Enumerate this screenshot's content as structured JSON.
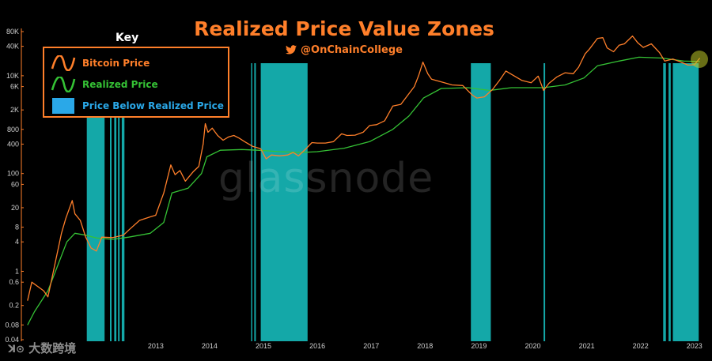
{
  "header": {
    "title": "Realized Price Value Zones",
    "handle": "@OnChainCollege",
    "handle_icon": "twitter-bird-icon"
  },
  "key": {
    "title": "Key",
    "items": [
      {
        "label": "Bitcoin Price",
        "color": "#ff7f2a",
        "icon": "orange-wave-icon"
      },
      {
        "label": "Realized Price",
        "color": "#35c235",
        "icon": "green-wave-icon"
      },
      {
        "label": "Price Below Realized Price",
        "color": "#2aa8e8",
        "icon": "blue-square-icon"
      }
    ]
  },
  "watermark": "glassnode",
  "footer_watermark": "大数跨境",
  "chart_data": {
    "type": "line",
    "title": "Realized Price Value Zones",
    "y_scale": "log",
    "ylim": [
      0.04,
      80000
    ],
    "y_ticks": [
      {
        "v": 80000,
        "label": "80K"
      },
      {
        "v": 40000,
        "label": "40K"
      },
      {
        "v": 10000,
        "label": "10K"
      },
      {
        "v": 6000,
        "label": "6K"
      },
      {
        "v": 2000,
        "label": "2K"
      },
      {
        "v": 800,
        "label": "800"
      },
      {
        "v": 400,
        "label": "400"
      },
      {
        "v": 100,
        "label": "100"
      },
      {
        "v": 60,
        "label": "60"
      },
      {
        "v": 20,
        "label": "20"
      },
      {
        "v": 8,
        "label": "8"
      },
      {
        "v": 4,
        "label": "4"
      },
      {
        "v": 1,
        "label": "1"
      },
      {
        "v": 0.6,
        "label": "0.6"
      },
      {
        "v": 0.2,
        "label": "0.2"
      },
      {
        "v": 0.08,
        "label": "0.08"
      },
      {
        "v": 0.04,
        "label": "0.04"
      }
    ],
    "xlim": [
      2010.55,
      2023.15
    ],
    "x_ticks": [
      2013,
      2014,
      2015,
      2016,
      2017,
      2018,
      2019,
      2020,
      2021,
      2022,
      2023
    ],
    "series": [
      {
        "name": "Bitcoin Price",
        "color": "#ff7f2a",
        "points": [
          [
            2010.62,
            0.25
          ],
          [
            2010.7,
            0.6
          ],
          [
            2010.8,
            0.5
          ],
          [
            2010.92,
            0.4
          ],
          [
            2011.0,
            0.3
          ],
          [
            2011.1,
            1.0
          ],
          [
            2011.25,
            6
          ],
          [
            2011.33,
            12
          ],
          [
            2011.45,
            28
          ],
          [
            2011.5,
            15
          ],
          [
            2011.6,
            11
          ],
          [
            2011.7,
            5
          ],
          [
            2011.8,
            3
          ],
          [
            2011.9,
            2.6
          ],
          [
            2012.0,
            5
          ],
          [
            2012.2,
            4.9
          ],
          [
            2012.4,
            5.5
          ],
          [
            2012.5,
            7
          ],
          [
            2012.7,
            11
          ],
          [
            2012.9,
            13
          ],
          [
            2013.0,
            14
          ],
          [
            2013.15,
            40
          ],
          [
            2013.28,
            150
          ],
          [
            2013.36,
            95
          ],
          [
            2013.45,
            115
          ],
          [
            2013.55,
            70
          ],
          [
            2013.7,
            110
          ],
          [
            2013.8,
            140
          ],
          [
            2013.88,
            400
          ],
          [
            2013.92,
            1050
          ],
          [
            2013.97,
            700
          ],
          [
            2014.05,
            850
          ],
          [
            2014.15,
            600
          ],
          [
            2014.25,
            480
          ],
          [
            2014.35,
            560
          ],
          [
            2014.45,
            600
          ],
          [
            2014.55,
            530
          ],
          [
            2014.65,
            450
          ],
          [
            2014.8,
            360
          ],
          [
            2014.95,
            320
          ],
          [
            2015.05,
            200
          ],
          [
            2015.15,
            240
          ],
          [
            2015.3,
            230
          ],
          [
            2015.45,
            240
          ],
          [
            2015.55,
            270
          ],
          [
            2015.65,
            230
          ],
          [
            2015.8,
            330
          ],
          [
            2015.9,
            430
          ],
          [
            2016.0,
            420
          ],
          [
            2016.15,
            420
          ],
          [
            2016.3,
            450
          ],
          [
            2016.45,
            650
          ],
          [
            2016.55,
            600
          ],
          [
            2016.7,
            610
          ],
          [
            2016.85,
            700
          ],
          [
            2016.97,
            960
          ],
          [
            2017.1,
            1000
          ],
          [
            2017.25,
            1200
          ],
          [
            2017.4,
            2400
          ],
          [
            2017.55,
            2600
          ],
          [
            2017.7,
            4300
          ],
          [
            2017.8,
            6000
          ],
          [
            2017.88,
            10000
          ],
          [
            2017.96,
            19000
          ],
          [
            2018.05,
            11000
          ],
          [
            2018.12,
            8500
          ],
          [
            2018.3,
            7500
          ],
          [
            2018.5,
            6500
          ],
          [
            2018.7,
            6300
          ],
          [
            2018.88,
            4000
          ],
          [
            2018.96,
            3500
          ],
          [
            2019.1,
            3700
          ],
          [
            2019.25,
            5200
          ],
          [
            2019.38,
            8000
          ],
          [
            2019.5,
            12500
          ],
          [
            2019.65,
            10000
          ],
          [
            2019.8,
            8000
          ],
          [
            2019.97,
            7200
          ],
          [
            2020.1,
            9800
          ],
          [
            2020.2,
            5000
          ],
          [
            2020.3,
            7000
          ],
          [
            2020.45,
            9500
          ],
          [
            2020.6,
            11500
          ],
          [
            2020.75,
            11000
          ],
          [
            2020.85,
            15000
          ],
          [
            2020.97,
            28000
          ],
          [
            2021.05,
            35000
          ],
          [
            2021.2,
            58000
          ],
          [
            2021.3,
            60000
          ],
          [
            2021.38,
            37000
          ],
          [
            2021.5,
            31000
          ],
          [
            2021.6,
            42000
          ],
          [
            2021.7,
            45000
          ],
          [
            2021.85,
            65000
          ],
          [
            2021.95,
            47000
          ],
          [
            2022.05,
            38000
          ],
          [
            2022.2,
            45000
          ],
          [
            2022.35,
            30000
          ],
          [
            2022.45,
            20000
          ],
          [
            2022.6,
            22000
          ],
          [
            2022.75,
            19000
          ],
          [
            2022.88,
            16500
          ],
          [
            2023.0,
            16800
          ],
          [
            2023.1,
            23000
          ]
        ]
      },
      {
        "name": "Realized Price",
        "color": "#35c235",
        "points": [
          [
            2010.62,
            0.08
          ],
          [
            2010.75,
            0.15
          ],
          [
            2011.0,
            0.4
          ],
          [
            2011.2,
            1.5
          ],
          [
            2011.35,
            4
          ],
          [
            2011.5,
            6
          ],
          [
            2011.7,
            5.5
          ],
          [
            2011.9,
            4.8
          ],
          [
            2012.2,
            4.5
          ],
          [
            2012.5,
            5
          ],
          [
            2012.9,
            6
          ],
          [
            2013.15,
            10
          ],
          [
            2013.3,
            40
          ],
          [
            2013.6,
            50
          ],
          [
            2013.85,
            100
          ],
          [
            2013.95,
            220
          ],
          [
            2014.2,
            300
          ],
          [
            2014.6,
            310
          ],
          [
            2014.9,
            300
          ],
          [
            2015.3,
            280
          ],
          [
            2015.7,
            270
          ],
          [
            2016.0,
            280
          ],
          [
            2016.5,
            330
          ],
          [
            2016.97,
            450
          ],
          [
            2017.4,
            800
          ],
          [
            2017.7,
            1500
          ],
          [
            2017.97,
            3500
          ],
          [
            2018.3,
            5500
          ],
          [
            2018.8,
            5700
          ],
          [
            2019.2,
            5000
          ],
          [
            2019.6,
            5700
          ],
          [
            2020.2,
            5700
          ],
          [
            2020.6,
            6500
          ],
          [
            2020.95,
            9000
          ],
          [
            2021.2,
            16000
          ],
          [
            2021.6,
            20000
          ],
          [
            2021.97,
            24000
          ],
          [
            2022.4,
            23000
          ],
          [
            2022.8,
            20000
          ],
          [
            2023.1,
            19500
          ]
        ]
      }
    ],
    "below_realized_zones": [
      [
        2011.72,
        2012.05
      ],
      [
        2012.15,
        2012.18
      ],
      [
        2012.23,
        2012.27
      ],
      [
        2012.3,
        2012.33
      ],
      [
        2012.37,
        2012.42
      ],
      [
        2014.77,
        2014.79
      ],
      [
        2014.83,
        2014.86
      ],
      [
        2014.95,
        2015.82
      ],
      [
        2018.85,
        2019.22
      ],
      [
        2020.2,
        2020.23
      ],
      [
        2022.42,
        2022.47
      ],
      [
        2022.52,
        2022.56
      ],
      [
        2022.6,
        2023.08
      ]
    ],
    "zone_color": "#14a8a8",
    "grid": false,
    "legend": "top-left"
  }
}
